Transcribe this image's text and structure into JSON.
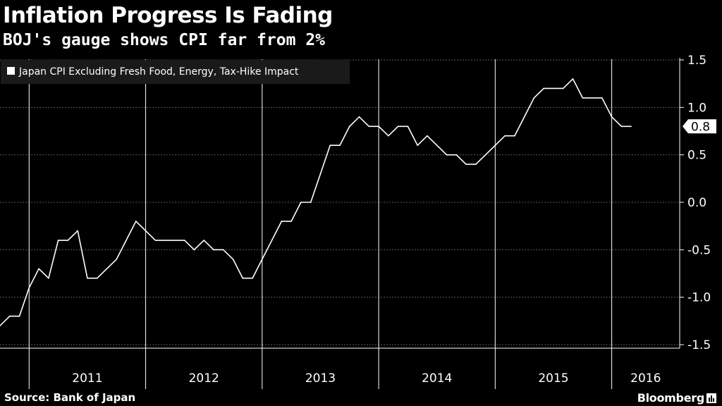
{
  "header": {
    "title": "Inflation Progress Is Fading",
    "subtitle": "BOJ's gauge shows CPI far from 2%"
  },
  "footer": {
    "source": "Source: Bank of Japan",
    "brand": "Bloomberg"
  },
  "colors": {
    "background": "#000000",
    "line": "#ffffff",
    "grid": "#5a5a5a",
    "axis": "#ffffff"
  },
  "chart_data": {
    "type": "line",
    "title": "Inflation Progress Is Fading",
    "subtitle": "BOJ's gauge shows CPI far from 2%",
    "xlabel": "",
    "ylabel": "",
    "x_axis": {
      "start": "2010-10",
      "end": "2016-08",
      "category_labels": [
        "2011",
        "2012",
        "2013",
        "2014",
        "2015",
        "2016"
      ]
    },
    "y_axis": {
      "position": "right",
      "ylim": [
        -1.5,
        1.5
      ],
      "ticks": [
        1.5,
        1.0,
        0.5,
        0.0,
        -0.5,
        -1.0,
        -1.5
      ],
      "tick_labels": [
        "1.5",
        "1.0",
        "0.5",
        "0.0",
        "-0.5",
        "-1.0",
        "-1.5"
      ]
    },
    "grid": true,
    "legend": {
      "placement": "top-left"
    },
    "last_value_label": "0.8",
    "series": [
      {
        "name": "Japan CPI Excluding Fresh Food, Energy, Tax-Hike Impact",
        "points": [
          [
            "2010-10",
            -1.3
          ],
          [
            "2010-11",
            -1.2
          ],
          [
            "2010-12",
            -1.2
          ],
          [
            "2011-01",
            -0.9
          ],
          [
            "2011-02",
            -0.7
          ],
          [
            "2011-03",
            -0.8
          ],
          [
            "2011-04",
            -0.4
          ],
          [
            "2011-05",
            -0.4
          ],
          [
            "2011-06",
            -0.3
          ],
          [
            "2011-07",
            -0.8
          ],
          [
            "2011-08",
            -0.8
          ],
          [
            "2011-09",
            -0.7
          ],
          [
            "2011-10",
            -0.6
          ],
          [
            "2011-11",
            -0.4
          ],
          [
            "2011-12",
            -0.2
          ],
          [
            "2012-01",
            -0.3
          ],
          [
            "2012-02",
            -0.4
          ],
          [
            "2012-03",
            -0.4
          ],
          [
            "2012-04",
            -0.4
          ],
          [
            "2012-05",
            -0.4
          ],
          [
            "2012-06",
            -0.5
          ],
          [
            "2012-07",
            -0.4
          ],
          [
            "2012-08",
            -0.5
          ],
          [
            "2012-09",
            -0.5
          ],
          [
            "2012-10",
            -0.6
          ],
          [
            "2012-11",
            -0.8
          ],
          [
            "2012-12",
            -0.8
          ],
          [
            "2013-01",
            -0.6
          ],
          [
            "2013-02",
            -0.4
          ],
          [
            "2013-03",
            -0.2
          ],
          [
            "2013-04",
            -0.2
          ],
          [
            "2013-05",
            0.0
          ],
          [
            "2013-06",
            0.0
          ],
          [
            "2013-07",
            0.3
          ],
          [
            "2013-08",
            0.6
          ],
          [
            "2013-09",
            0.6
          ],
          [
            "2013-10",
            0.8
          ],
          [
            "2013-11",
            0.9
          ],
          [
            "2013-12",
            0.8
          ],
          [
            "2014-01",
            0.8
          ],
          [
            "2014-02",
            0.7
          ],
          [
            "2014-03",
            0.8
          ],
          [
            "2014-04",
            0.8
          ],
          [
            "2014-05",
            0.6
          ],
          [
            "2014-06",
            0.7
          ],
          [
            "2014-07",
            0.6
          ],
          [
            "2014-08",
            0.5
          ],
          [
            "2014-09",
            0.5
          ],
          [
            "2014-10",
            0.4
          ],
          [
            "2014-11",
            0.4
          ],
          [
            "2014-12",
            0.5
          ],
          [
            "2015-01",
            0.6
          ],
          [
            "2015-02",
            0.7
          ],
          [
            "2015-03",
            0.7
          ],
          [
            "2015-04",
            0.9
          ],
          [
            "2015-05",
            1.1
          ],
          [
            "2015-06",
            1.2
          ],
          [
            "2015-07",
            1.2
          ],
          [
            "2015-08",
            1.2
          ],
          [
            "2015-09",
            1.3
          ],
          [
            "2015-10",
            1.1
          ],
          [
            "2015-11",
            1.1
          ],
          [
            "2015-12",
            1.1
          ],
          [
            "2016-01",
            0.9
          ],
          [
            "2016-02",
            0.8
          ],
          [
            "2016-03",
            0.8
          ]
        ]
      }
    ]
  }
}
